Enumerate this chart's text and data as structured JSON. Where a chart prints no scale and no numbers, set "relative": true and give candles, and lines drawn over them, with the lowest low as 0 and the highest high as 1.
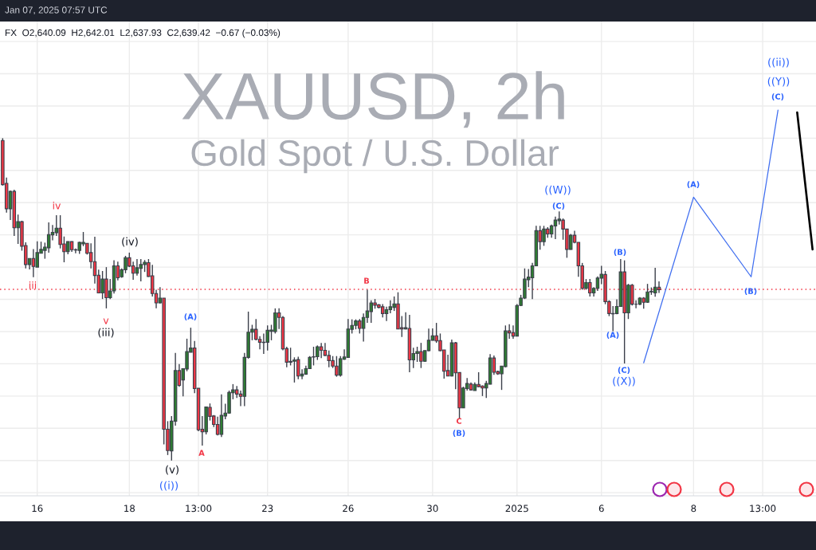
{
  "chart_data": {
    "type": "candlestick",
    "title": "XAUUSD, 2h",
    "subtitle": "Gold Spot / U.S. Dollar",
    "relative": true,
    "grid": true,
    "tick_labels": "x",
    "annotations": [
      "Jan 07, 2025 07:57 UTC",
      "FX  O2,640.09  H2,642.01  L2,637.93  C2,639.42  −0.67 (−0.03%)",
      "iii",
      "iv",
      "v",
      "(iii)",
      "(iv)",
      "(v)",
      "((i))",
      "(A)",
      "A",
      "B",
      "C",
      "(B)",
      "((W))",
      "(C)",
      "(B)",
      "(A)",
      "(C)",
      "((X))",
      "(A)",
      "(B)",
      "((ii))",
      "((Y))",
      "(C)"
    ],
    "categories": [
      null,
      null,
      null,
      null,
      null,
      null,
      null,
      null,
      null,
      "16",
      null,
      null,
      null,
      null,
      null,
      null,
      null,
      null,
      null,
      null,
      null,
      null,
      null,
      null,
      null,
      null,
      null,
      null,
      null,
      null,
      null,
      null,
      null,
      "18",
      null,
      null,
      null,
      null,
      null,
      null,
      null,
      null,
      null,
      null,
      null,
      null,
      null,
      null,
      null,
      null,
      null,
      "13:00",
      null,
      null,
      null,
      null,
      null,
      null,
      null,
      null,
      null,
      null,
      null,
      null,
      null,
      null,
      null,
      null,
      null,
      "23",
      null,
      null,
      null,
      null,
      null,
      null,
      null,
      null,
      null,
      null,
      null,
      null,
      null,
      null,
      null,
      null,
      null,
      null,
      null,
      null,
      "26",
      null,
      null,
      null,
      null,
      null,
      null,
      null,
      null,
      null,
      null,
      null,
      null,
      null,
      null,
      null,
      null,
      null,
      null,
      null,
      null,
      null,
      "30",
      null,
      null,
      null,
      null,
      null,
      null,
      null,
      null,
      null,
      null,
      null,
      null,
      null,
      null,
      null,
      null,
      null,
      null,
      null,
      null,
      null,
      "2025",
      null,
      null,
      null,
      null,
      null,
      null,
      null,
      null,
      null,
      null,
      null,
      null,
      null,
      null,
      null,
      null,
      null,
      null,
      null,
      null,
      null,
      "6",
      null,
      null,
      null,
      null,
      null,
      null,
      null,
      null,
      null,
      null,
      null,
      null,
      null,
      null,
      null,
      null,
      null,
      null,
      null,
      null,
      null,
      null,
      null,
      "8",
      null,
      null,
      null,
      null,
      null,
      null,
      null,
      null,
      null,
      null,
      null,
      null,
      null,
      null,
      null,
      null,
      null,
      "13:00",
      null,
      null,
      null,
      null,
      null,
      null,
      null,
      null,
      null,
      null,
      null,
      null,
      null
    ],
    "ohlc": [
      [
        0.993,
        1.0,
        0.853,
        0.856
      ],
      [
        0.86,
        0.878,
        0.769,
        0.781
      ],
      [
        0.781,
        0.838,
        0.746,
        0.835
      ],
      [
        0.835,
        0.84,
        0.697,
        0.722
      ],
      [
        0.722,
        0.763,
        0.672,
        0.741
      ],
      [
        0.741,
        0.744,
        0.651,
        0.665
      ],
      [
        0.667,
        0.677,
        0.596,
        0.608
      ],
      [
        0.608,
        0.627,
        0.593,
        0.627
      ],
      [
        0.627,
        0.656,
        0.569,
        0.602
      ],
      [
        0.6,
        0.68,
        0.6,
        0.645
      ],
      [
        0.643,
        0.679,
        0.643,
        0.655
      ],
      [
        0.652,
        0.676,
        0.626,
        0.662
      ],
      [
        0.66,
        0.739,
        0.645,
        0.701
      ],
      [
        0.7,
        0.731,
        0.683,
        0.708
      ],
      [
        0.707,
        0.761,
        0.697,
        0.721
      ],
      [
        0.721,
        0.761,
        0.658,
        0.67
      ],
      [
        0.672,
        0.695,
        0.615,
        0.648
      ],
      [
        0.648,
        0.68,
        0.64,
        0.679
      ],
      [
        0.679,
        0.68,
        0.647,
        0.654
      ],
      [
        0.654,
        0.658,
        0.643,
        0.653
      ],
      [
        0.652,
        0.679,
        0.641,
        0.677
      ],
      [
        0.672,
        0.709,
        0.665,
        0.677
      ],
      [
        0.674,
        0.674,
        0.639,
        0.643
      ],
      [
        0.645,
        0.674,
        0.596,
        0.617
      ],
      [
        0.617,
        0.694,
        0.549,
        0.574
      ],
      [
        0.575,
        0.592,
        0.52,
        0.52
      ],
      [
        0.52,
        0.588,
        0.501,
        0.563
      ],
      [
        0.563,
        0.6,
        0.472,
        0.505
      ],
      [
        0.505,
        0.563,
        0.501,
        0.526
      ],
      [
        0.526,
        0.621,
        0.518,
        0.604
      ],
      [
        0.604,
        0.617,
        0.559,
        0.567
      ],
      [
        0.57,
        0.596,
        0.567,
        0.592
      ],
      [
        0.592,
        0.635,
        0.581,
        0.629
      ],
      [
        0.629,
        0.645,
        0.6,
        0.603
      ],
      [
        0.604,
        0.617,
        0.561,
        0.581
      ],
      [
        0.581,
        0.625,
        0.574,
        0.598
      ],
      [
        0.596,
        0.625,
        0.556,
        0.608
      ],
      [
        0.608,
        0.622,
        0.585,
        0.615
      ],
      [
        0.614,
        0.625,
        0.57,
        0.571
      ],
      [
        0.573,
        0.607,
        0.509,
        0.518
      ],
      [
        0.518,
        0.53,
        0.472,
        0.489
      ],
      [
        0.489,
        0.538,
        0.487,
        0.504
      ],
      [
        0.504,
        0.504,
        0.05,
        0.097
      ],
      [
        0.097,
        0.122,
        0.017,
        0.031
      ],
      [
        0.03,
        0.138,
        0.0,
        0.122
      ],
      [
        0.122,
        0.334,
        0.108,
        0.279
      ],
      [
        0.279,
        0.299,
        0.229,
        0.233
      ],
      [
        0.25,
        0.285,
        0.199,
        0.285
      ],
      [
        0.284,
        0.378,
        0.277,
        0.338
      ],
      [
        0.336,
        0.412,
        0.336,
        0.349
      ],
      [
        0.349,
        0.371,
        0.209,
        0.223
      ],
      [
        0.224,
        0.224,
        0.091,
        0.095
      ],
      [
        0.097,
        0.138,
        0.046,
        0.089
      ],
      [
        0.089,
        0.167,
        0.081,
        0.166
      ],
      [
        0.165,
        0.177,
        0.124,
        0.137
      ],
      [
        0.138,
        0.141,
        0.104,
        0.112
      ],
      [
        0.112,
        0.136,
        0.078,
        0.081
      ],
      [
        0.081,
        0.205,
        0.073,
        0.14
      ],
      [
        0.138,
        0.176,
        0.128,
        0.147
      ],
      [
        0.147,
        0.217,
        0.145,
        0.211
      ],
      [
        0.21,
        0.237,
        0.19,
        0.219
      ],
      [
        0.219,
        0.231,
        0.194,
        0.206
      ],
      [
        0.206,
        0.217,
        0.169,
        0.199
      ],
      [
        0.199,
        0.334,
        0.169,
        0.32
      ],
      [
        0.32,
        0.462,
        0.316,
        0.398
      ],
      [
        0.398,
        0.421,
        0.373,
        0.407
      ],
      [
        0.407,
        0.439,
        0.373,
        0.376
      ],
      [
        0.376,
        0.386,
        0.345,
        0.367
      ],
      [
        0.367,
        0.394,
        0.331,
        0.366
      ],
      [
        0.367,
        0.419,
        0.341,
        0.404
      ],
      [
        0.401,
        0.421,
        0.373,
        0.405
      ],
      [
        0.4,
        0.472,
        0.394,
        0.458
      ],
      [
        0.458,
        0.472,
        0.408,
        0.444
      ],
      [
        0.444,
        0.448,
        0.342,
        0.346
      ],
      [
        0.347,
        0.353,
        0.289,
        0.305
      ],
      [
        0.308,
        0.35,
        0.295,
        0.305
      ],
      [
        0.308,
        0.32,
        0.242,
        0.312
      ],
      [
        0.313,
        0.322,
        0.252,
        0.262
      ],
      [
        0.262,
        0.283,
        0.252,
        0.268
      ],
      [
        0.268,
        0.294,
        0.266,
        0.285
      ],
      [
        0.285,
        0.324,
        0.284,
        0.32
      ],
      [
        0.322,
        0.353,
        0.295,
        0.321
      ],
      [
        0.322,
        0.357,
        0.312,
        0.353
      ],
      [
        0.353,
        0.365,
        0.318,
        0.342
      ],
      [
        0.342,
        0.365,
        0.324,
        0.326
      ],
      [
        0.326,
        0.341,
        0.289,
        0.31
      ],
      [
        0.31,
        0.324,
        0.287,
        0.293
      ],
      [
        0.293,
        0.324,
        0.26,
        0.265
      ],
      [
        0.265,
        0.324,
        0.26,
        0.316
      ],
      [
        0.314,
        0.345,
        0.312,
        0.321
      ],
      [
        0.32,
        0.439,
        0.32,
        0.408
      ],
      [
        0.407,
        0.438,
        0.394,
        0.419
      ],
      [
        0.419,
        0.438,
        0.407,
        0.433
      ],
      [
        0.433,
        0.439,
        0.394,
        0.41
      ],
      [
        0.41,
        0.456,
        0.369,
        0.444
      ],
      [
        0.444,
        0.53,
        0.427,
        0.464
      ],
      [
        0.462,
        0.497,
        0.427,
        0.489
      ],
      [
        0.489,
        0.501,
        0.471,
        0.482
      ],
      [
        0.483,
        0.485,
        0.472,
        0.475
      ],
      [
        0.477,
        0.485,
        0.444,
        0.456
      ],
      [
        0.456,
        0.477,
        0.433,
        0.468
      ],
      [
        0.468,
        0.497,
        0.457,
        0.477
      ],
      [
        0.475,
        0.509,
        0.464,
        0.486
      ],
      [
        0.486,
        0.522,
        0.408,
        0.408
      ],
      [
        0.412,
        0.448,
        0.383,
        0.408
      ],
      [
        0.408,
        0.46,
        0.407,
        0.412
      ],
      [
        0.41,
        0.452,
        0.274,
        0.312
      ],
      [
        0.312,
        0.35,
        0.287,
        0.332
      ],
      [
        0.332,
        0.353,
        0.306,
        0.338
      ],
      [
        0.338,
        0.365,
        0.287,
        0.308
      ],
      [
        0.308,
        0.341,
        0.306,
        0.341
      ],
      [
        0.341,
        0.409,
        0.339,
        0.373
      ],
      [
        0.373,
        0.41,
        0.372,
        0.387
      ],
      [
        0.387,
        0.427,
        0.365,
        0.371
      ],
      [
        0.372,
        0.394,
        0.339,
        0.341
      ],
      [
        0.343,
        0.343,
        0.254,
        0.277
      ],
      [
        0.279,
        0.328,
        0.262,
        0.262
      ],
      [
        0.262,
        0.375,
        0.261,
        0.365
      ],
      [
        0.365,
        0.368,
        0.221,
        0.272
      ],
      [
        0.273,
        0.273,
        0.13,
        0.163
      ],
      [
        0.163,
        0.229,
        0.163,
        0.225
      ],
      [
        0.223,
        0.256,
        0.217,
        0.239
      ],
      [
        0.237,
        0.242,
        0.217,
        0.219
      ],
      [
        0.217,
        0.242,
        0.217,
        0.236
      ],
      [
        0.236,
        0.274,
        0.228,
        0.229
      ],
      [
        0.231,
        0.233,
        0.2,
        0.225
      ],
      [
        0.225,
        0.247,
        0.194,
        0.239
      ],
      [
        0.237,
        0.33,
        0.236,
        0.318
      ],
      [
        0.318,
        0.326,
        0.266,
        0.274
      ],
      [
        0.276,
        0.279,
        0.266,
        0.269
      ],
      [
        0.269,
        0.293,
        0.219,
        0.293
      ],
      [
        0.291,
        0.419,
        0.289,
        0.402
      ],
      [
        0.402,
        0.423,
        0.378,
        0.396
      ],
      [
        0.397,
        0.419,
        0.378,
        0.386
      ],
      [
        0.386,
        0.485,
        0.386,
        0.481
      ],
      [
        0.481,
        0.514,
        0.479,
        0.504
      ],
      [
        0.504,
        0.596,
        0.501,
        0.563
      ],
      [
        0.561,
        0.594,
        0.538,
        0.569
      ],
      [
        0.567,
        0.613,
        0.501,
        0.604
      ],
      [
        0.604,
        0.728,
        0.604,
        0.713
      ],
      [
        0.713,
        0.728,
        0.654,
        0.679
      ],
      [
        0.679,
        0.728,
        0.666,
        0.718
      ],
      [
        0.718,
        0.724,
        0.691,
        0.703
      ],
      [
        0.703,
        0.732,
        0.691,
        0.728
      ],
      [
        0.728,
        0.757,
        0.687,
        0.746
      ],
      [
        0.744,
        0.773,
        0.732,
        0.749
      ],
      [
        0.746,
        0.751,
        0.685,
        0.718
      ],
      [
        0.718,
        0.718,
        0.629,
        0.655
      ],
      [
        0.655,
        0.703,
        0.654,
        0.699
      ],
      [
        0.699,
        0.713,
        0.674,
        0.677
      ],
      [
        0.677,
        0.677,
        0.57,
        0.604
      ],
      [
        0.604,
        0.613,
        0.53,
        0.534
      ],
      [
        0.534,
        0.563,
        0.53,
        0.552
      ],
      [
        0.552,
        0.563,
        0.509,
        0.52
      ],
      [
        0.52,
        0.538,
        0.509,
        0.534
      ],
      [
        0.534,
        0.571,
        0.526,
        0.566
      ],
      [
        0.566,
        0.604,
        0.547,
        0.578
      ],
      [
        0.577,
        0.588,
        0.485,
        0.493
      ],
      [
        0.493,
        0.497,
        0.448,
        0.456
      ],
      [
        0.456,
        0.479,
        0.401,
        0.455
      ],
      [
        0.456,
        0.5,
        0.454,
        0.478
      ],
      [
        0.478,
        0.625,
        0.477,
        0.585
      ],
      [
        0.585,
        0.621,
        0.301,
        0.458
      ],
      [
        0.458,
        0.548,
        0.439,
        0.544
      ],
      [
        0.544,
        0.548,
        0.481,
        0.485
      ],
      [
        0.485,
        0.497,
        0.472,
        0.485
      ],
      [
        0.485,
        0.507,
        0.482,
        0.504
      ],
      [
        0.504,
        0.507,
        0.471,
        0.491
      ],
      [
        0.491,
        0.548,
        0.489,
        0.523
      ],
      [
        0.523,
        0.537,
        0.514,
        0.525
      ],
      [
        0.52,
        0.598,
        0.508,
        0.538
      ],
      [
        0.538,
        0.556,
        0.52,
        0.53
      ],
      null,
      null,
      null,
      null,
      null,
      null,
      null,
      null,
      null,
      null,
      null,
      null,
      null,
      null,
      null,
      null,
      null,
      null,
      null,
      null,
      null,
      null,
      null,
      null,
      null,
      null,
      null,
      null,
      null,
      null,
      null,
      null,
      null,
      null,
      null,
      null,
      null,
      null,
      null,
      null
    ],
    "series": [
      {
        "type": "line",
        "color": "#3f6ef0",
        "line_style": "solid",
        "values": [
          null,
          null,
          null,
          null,
          null,
          null,
          null,
          null,
          null,
          null,
          null,
          null,
          null,
          null,
          null,
          null,
          null,
          null,
          null,
          null,
          null,
          null,
          null,
          null,
          null,
          null,
          null,
          null,
          null,
          null,
          null,
          null,
          null,
          null,
          null,
          null,
          null,
          null,
          null,
          null,
          null,
          null,
          null,
          null,
          null,
          null,
          null,
          null,
          null,
          null,
          null,
          null,
          null,
          null,
          null,
          null,
          null,
          null,
          null,
          null,
          null,
          null,
          null,
          null,
          null,
          null,
          null,
          null,
          null,
          null,
          null,
          null,
          null,
          null,
          null,
          null,
          null,
          null,
          null,
          null,
          null,
          null,
          null,
          null,
          null,
          null,
          null,
          null,
          null,
          null,
          null,
          null,
          null,
          null,
          null,
          null,
          null,
          null,
          null,
          null,
          null,
          null,
          null,
          null,
          null,
          null,
          null,
          null,
          null,
          null,
          null,
          null,
          null,
          null,
          null,
          null,
          null,
          null,
          null,
          null,
          null,
          null,
          null,
          null,
          null,
          null,
          null,
          null,
          null,
          null,
          null,
          null,
          null,
          null,
          null,
          null,
          null,
          null,
          null,
          null,
          null,
          null,
          null,
          null,
          null,
          null,
          null,
          null,
          null,
          null,
          null,
          null,
          null,
          null,
          null,
          null,
          null,
          null,
          null,
          null,
          null,
          null,
          null,
          null,
          null,
          null,
          null,
          0.303,
          null,
          null,
          null,
          null,
          null,
          null,
          null,
          null,
          null,
          null,
          null,
          null,
          0.817,
          null,
          null,
          null,
          null,
          null,
          null,
          null,
          null,
          null,
          null,
          null,
          null,
          null,
          null,
          0.57,
          null,
          null,
          null,
          null,
          null,
          null,
          1.087,
          null,
          null,
          null,
          null,
          null,
          null,
          null,
          null,
          null
        ]
      },
      {
        "type": "line",
        "color": "#000000",
        "line_style": "solid",
        "values": [
          null,
          null,
          null,
          null,
          null,
          null,
          null,
          null,
          null,
          null,
          null,
          null,
          null,
          null,
          null,
          null,
          null,
          null,
          null,
          null,
          null,
          null,
          null,
          null,
          null,
          null,
          null,
          null,
          null,
          null,
          null,
          null,
          null,
          null,
          null,
          null,
          null,
          null,
          null,
          null,
          null,
          null,
          null,
          null,
          null,
          null,
          null,
          null,
          null,
          null,
          null,
          null,
          null,
          null,
          null,
          null,
          null,
          null,
          null,
          null,
          null,
          null,
          null,
          null,
          null,
          null,
          null,
          null,
          null,
          null,
          null,
          null,
          null,
          null,
          null,
          null,
          null,
          null,
          null,
          null,
          null,
          null,
          null,
          null,
          null,
          null,
          null,
          null,
          null,
          null,
          null,
          null,
          null,
          null,
          null,
          null,
          null,
          null,
          null,
          null,
          null,
          null,
          null,
          null,
          null,
          null,
          null,
          null,
          null,
          null,
          null,
          null,
          null,
          null,
          null,
          null,
          null,
          null,
          null,
          null,
          null,
          null,
          null,
          null,
          null,
          null,
          null,
          null,
          null,
          null,
          null,
          null,
          null,
          null,
          null,
          null,
          null,
          null,
          null,
          null,
          null,
          null,
          null,
          null,
          null,
          null,
          null,
          null,
          null,
          null,
          null,
          null,
          null,
          null,
          null,
          null,
          null,
          null,
          null,
          null,
          null,
          null,
          null,
          null,
          null,
          null,
          null,
          null,
          null,
          null,
          null,
          null,
          null,
          null,
          null,
          null,
          null,
          null,
          null,
          null,
          null,
          null,
          null,
          null,
          null,
          null,
          null,
          null,
          null,
          null,
          null,
          null,
          null,
          null,
          null,
          null,
          null,
          null,
          null,
          null,
          null,
          null,
          null,
          null,
          null,
          null,
          null,
          1.08,
          null,
          null,
          null,
          0.655
        ]
      }
    ],
    "ref_lines": [
      {
        "axis": "y",
        "value": 0.531,
        "color": "#f23645",
        "line_style": "dotted"
      }
    ]
  }
}
